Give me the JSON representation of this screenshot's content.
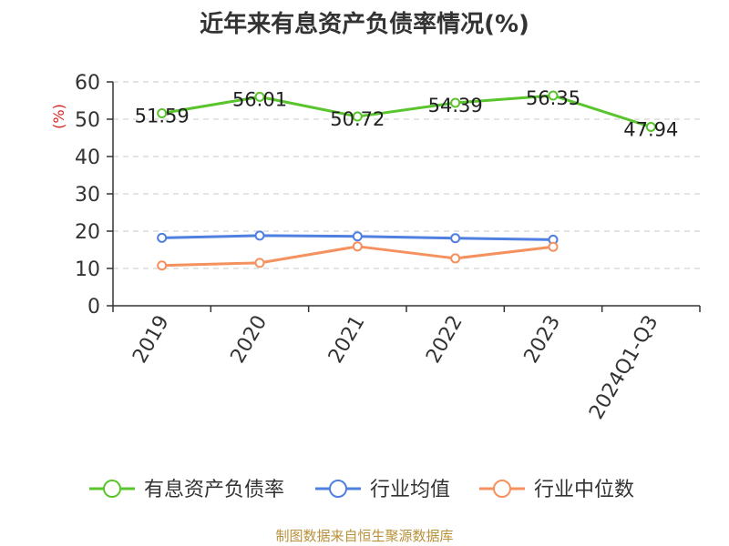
{
  "chart_data": {
    "type": "line",
    "title": "近年来有息资产负债率情况(%)",
    "ylabel": "(%)",
    "xlabel": "",
    "categories": [
      "2019",
      "2020",
      "2021",
      "2022",
      "2023",
      "2024Q1-Q3"
    ],
    "ylim": [
      0,
      60
    ],
    "yticks": [
      0,
      10,
      20,
      30,
      40,
      50,
      60
    ],
    "grid": true,
    "legend_position": "bottom",
    "series": [
      {
        "name": "有息资产负债率",
        "values": [
          51.59,
          56.01,
          50.72,
          54.39,
          56.35,
          47.94
        ],
        "labels": [
          "51.59",
          "56.01",
          "50.72",
          "54.39",
          "56.35",
          "47.94"
        ],
        "color": "#5ac42d"
      },
      {
        "name": "行业均值",
        "values": [
          18.2,
          18.8,
          18.6,
          18.1,
          17.7,
          null
        ],
        "color": "#4f7fe0"
      },
      {
        "name": "行业中位数",
        "values": [
          10.8,
          11.5,
          15.9,
          12.7,
          15.8,
          null
        ],
        "color": "#f5915e"
      }
    ]
  },
  "source": "制图数据来自恒生聚源数据库"
}
